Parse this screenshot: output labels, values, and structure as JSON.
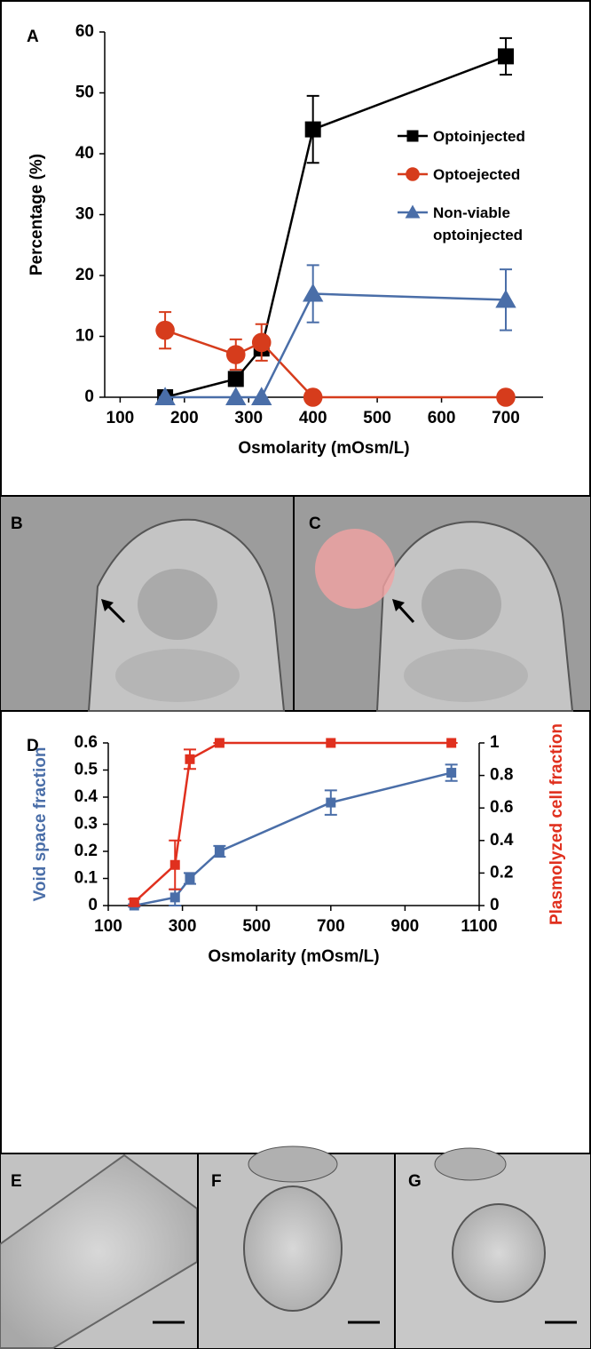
{
  "chart_data": [
    {
      "type": "line",
      "panel": "A",
      "x_label": "Osmolarity (mOsm/L)",
      "y_label": "Percentage (%)",
      "xlim": [
        76,
        758
      ],
      "xticks": [
        100,
        200,
        300,
        400,
        500,
        600,
        700
      ],
      "ylim": [
        0,
        60
      ],
      "yticks": [
        0,
        10,
        20,
        30,
        40,
        50,
        60
      ],
      "series": [
        {
          "name": "Optoinjected",
          "color": "#000000",
          "marker": "square",
          "x": [
            170,
            280,
            320,
            400,
            700
          ],
          "values": [
            0,
            3,
            8,
            44,
            56
          ],
          "errors": [
            0.5,
            1,
            1,
            5.5,
            3
          ]
        },
        {
          "name": "Optoejected",
          "color": "#d63c1c",
          "marker": "circle",
          "x": [
            170,
            280,
            320,
            400,
            700
          ],
          "values": [
            11,
            7,
            9,
            0,
            0
          ],
          "errors": [
            3,
            2.5,
            3,
            0,
            0
          ]
        },
        {
          "name": "Non-viable optoinjected",
          "color": "#4a6ea8",
          "marker": "triangle",
          "x": [
            170,
            280,
            320,
            400,
            700
          ],
          "values": [
            0,
            0,
            0,
            17,
            16
          ],
          "errors": [
            0,
            0,
            0,
            4.7,
            5
          ]
        }
      ]
    },
    {
      "type": "line",
      "panel": "D",
      "x_label": "Osmolarity (mOsm/L)",
      "y_label": "Void space fraction",
      "y2_label": "Plasmolyzed cell fraction",
      "xlim": [
        100,
        1100
      ],
      "xticks": [
        100,
        300,
        500,
        700,
        900,
        1100
      ],
      "ylim": [
        0,
        0.6
      ],
      "yticks": [
        0,
        0.1,
        0.2,
        0.3,
        0.4,
        0.5,
        0.6
      ],
      "y2lim": [
        0,
        1
      ],
      "y2ticks": [
        0,
        0.2,
        0.4,
        0.6,
        0.8,
        1
      ],
      "series": [
        {
          "name": "Void space fraction",
          "color": "#4a6ea8",
          "marker": "square",
          "x": [
            170,
            280,
            320,
            400,
            700,
            1025
          ],
          "values": [
            0,
            0.03,
            0.1,
            0.2,
            0.38,
            0.49
          ],
          "errors": [
            0.005,
            0.03,
            0.02,
            0.02,
            0.045,
            0.03
          ]
        },
        {
          "name": "Plasmolyzed cell fraction",
          "color": "#e0301e",
          "marker": "square",
          "axis": "y2",
          "x": [
            170,
            280,
            320,
            400,
            700,
            1025
          ],
          "values": [
            0.02,
            0.25,
            0.9,
            1,
            1,
            1
          ],
          "errors": [
            0.02,
            0.15,
            0.06,
            0,
            0,
            0
          ]
        }
      ]
    }
  ],
  "image_panels": [
    {
      "label": "B"
    },
    {
      "label": "C"
    },
    {
      "label": "E"
    },
    {
      "label": "F"
    },
    {
      "label": "G"
    }
  ]
}
